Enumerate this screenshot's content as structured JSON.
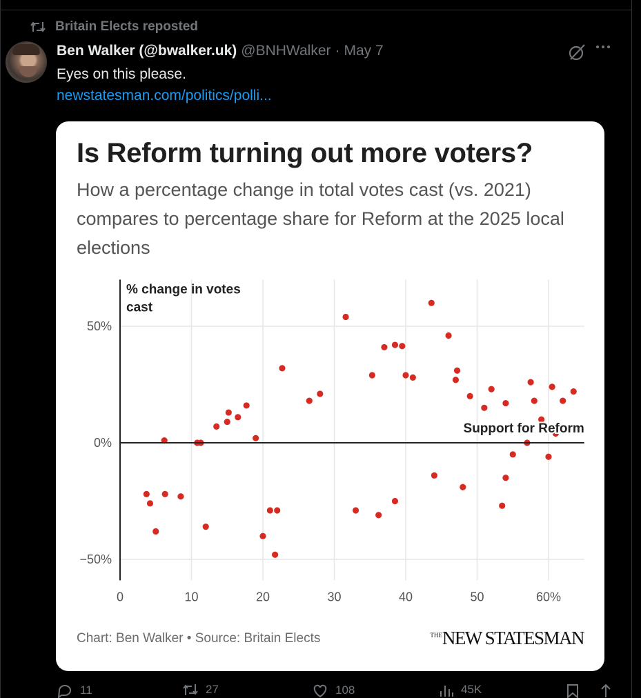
{
  "repost": {
    "label": "Britain Elects reposted",
    "icon": "repost-icon"
  },
  "post": {
    "author_name": "Ben Walker (@bwalker.uk)",
    "author_handle": "@BNHWalker",
    "separator": "·",
    "date": "May 7",
    "text": "Eyes on this please.",
    "link": "newstatesman.com/politics/polli..."
  },
  "card": {
    "title": "Is Reform turning out more voters?",
    "subtitle": "How a percentage change in total votes cast (vs. 2021) compares to percentage share for Reform at the 2025 local elections",
    "credit": "Chart: Ben Walker • Source: Britain Elects",
    "publisher_small": "THE",
    "publisher": "NEW STATESMAN"
  },
  "actions": {
    "replies": "11",
    "reposts": "27",
    "likes": "108",
    "views": "45K"
  },
  "colors": {
    "accent_link": "#1d9bf0",
    "dots": "#d62b22",
    "muted": "#71767b"
  },
  "chart_data": {
    "type": "scatter",
    "ylabel": "% change in votes cast",
    "xlabel": "Support for Reform",
    "x_ticks": [
      "0",
      "10",
      "20",
      "30",
      "40",
      "50",
      "60%"
    ],
    "y_ticks": [
      "50%",
      "0%",
      "−50%"
    ],
    "xlim": [
      0,
      65
    ],
    "ylim": [
      -59,
      70
    ],
    "grid": true,
    "points": [
      [
        43.6,
        60
      ],
      [
        31.6,
        54
      ],
      [
        46,
        46
      ],
      [
        38.5,
        42
      ],
      [
        39.5,
        41.5
      ],
      [
        37,
        41
      ],
      [
        22.7,
        32
      ],
      [
        35.3,
        29
      ],
      [
        40,
        29
      ],
      [
        41,
        28
      ],
      [
        47.2,
        31
      ],
      [
        47,
        27
      ],
      [
        57.5,
        26
      ],
      [
        60.5,
        24
      ],
      [
        63.5,
        22
      ],
      [
        62,
        18
      ],
      [
        58,
        18
      ],
      [
        59,
        10
      ],
      [
        61,
        4
      ],
      [
        57,
        0
      ],
      [
        60,
        -6
      ],
      [
        55,
        -5
      ],
      [
        53.5,
        -27
      ],
      [
        54,
        -15
      ],
      [
        48,
        -19
      ],
      [
        44,
        -14
      ],
      [
        36.2,
        -31
      ],
      [
        38.5,
        -25
      ],
      [
        33,
        -29
      ],
      [
        22,
        -29
      ],
      [
        21,
        -29
      ],
      [
        20,
        -40
      ],
      [
        21.7,
        -48
      ],
      [
        5,
        -38
      ],
      [
        12,
        -36
      ],
      [
        3.7,
        -22
      ],
      [
        4.2,
        -26
      ],
      [
        6.3,
        -22
      ],
      [
        8.5,
        -23
      ],
      [
        6.2,
        1
      ],
      [
        10.8,
        0
      ],
      [
        11.3,
        0
      ],
      [
        17.7,
        16
      ],
      [
        15.2,
        13
      ],
      [
        16.5,
        11
      ],
      [
        15,
        9
      ],
      [
        13.5,
        7
      ],
      [
        19,
        2
      ],
      [
        26.5,
        18
      ],
      [
        28,
        21
      ],
      [
        52,
        23
      ],
      [
        49,
        20
      ],
      [
        54,
        17
      ],
      [
        51,
        15
      ]
    ],
    "annotations": [
      {
        "text": "Support for Reform",
        "near_x": 55,
        "near_y": 5
      }
    ]
  }
}
